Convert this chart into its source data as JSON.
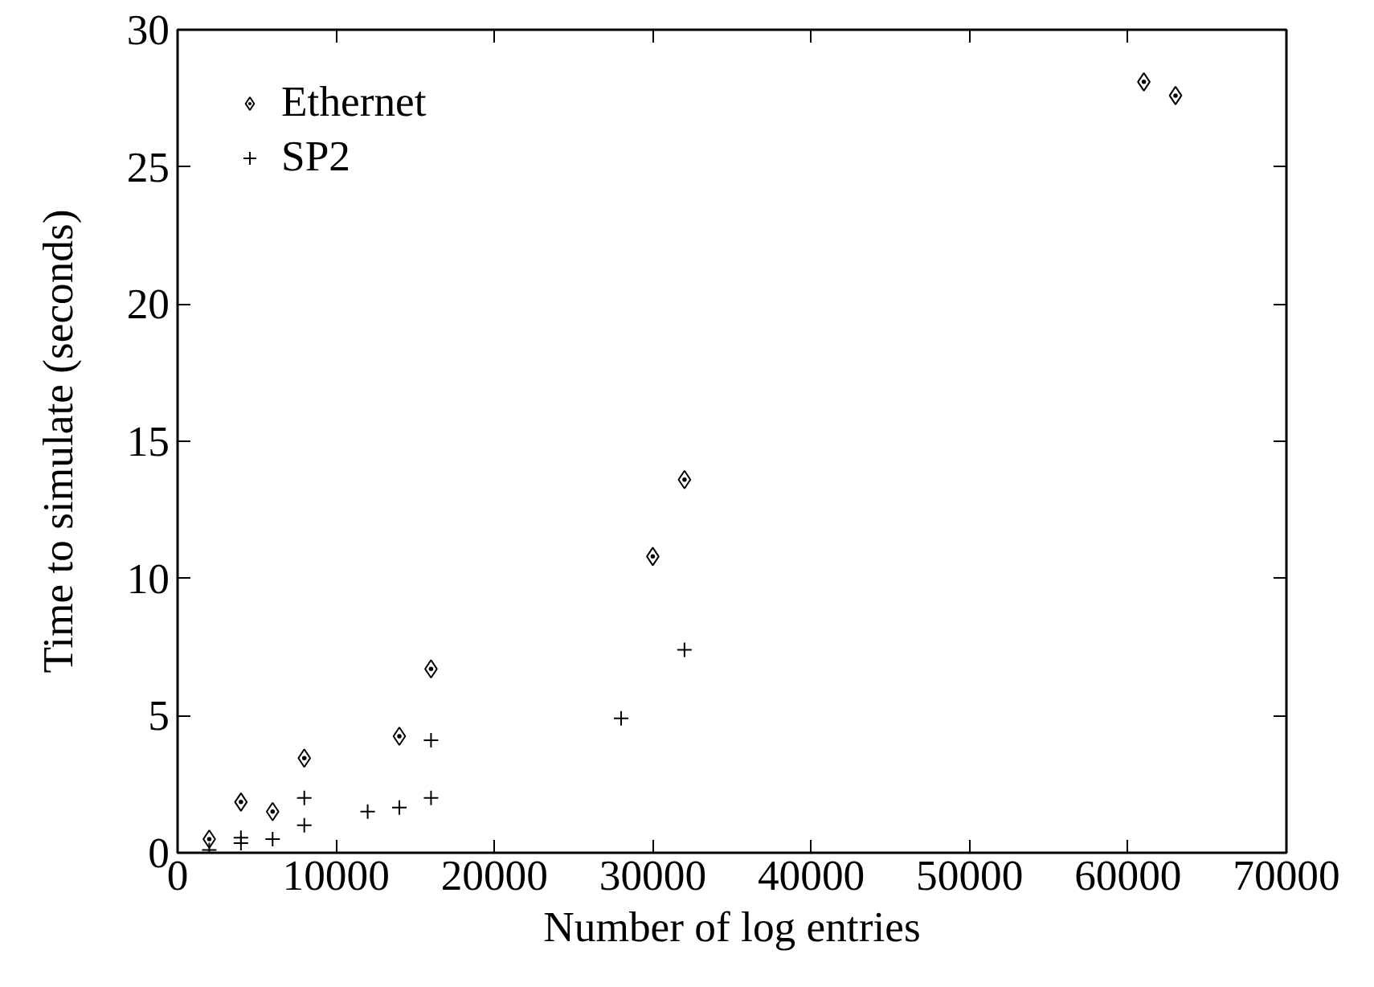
{
  "chart_data": {
    "type": "scatter",
    "xlabel": "Number of log entries",
    "ylabel": "Time to simulate (seconds)",
    "xlim": [
      0,
      70000
    ],
    "xticks": [
      0,
      10000,
      20000,
      30000,
      40000,
      50000,
      60000,
      70000
    ],
    "ylim": [
      0,
      30
    ],
    "yticks": [
      0,
      5,
      10,
      15,
      20,
      25,
      30
    ],
    "grid": false,
    "legend": "top left",
    "series": [
      {
        "name": "Ethernet",
        "color": "#000000",
        "marker": "diamond",
        "x": [
          2000,
          4000,
          6000,
          8000,
          14000,
          16000,
          30000,
          32000,
          61000,
          63000
        ],
        "values": [
          0.5,
          1.85,
          1.5,
          3.45,
          4.25,
          6.7,
          10.8,
          13.6,
          28.1,
          27.6
        ]
      },
      {
        "name": "SP2",
        "color": "#000000",
        "marker": "cross",
        "x": [
          2000,
          4000,
          4000,
          6000,
          8000,
          8000,
          12000,
          14000,
          16000,
          16000,
          28000,
          32000
        ],
        "values": [
          0.1,
          0.35,
          0.55,
          0.5,
          1.0,
          2.0,
          1.5,
          1.65,
          2.0,
          4.1,
          4.9,
          7.4
        ]
      }
    ]
  }
}
